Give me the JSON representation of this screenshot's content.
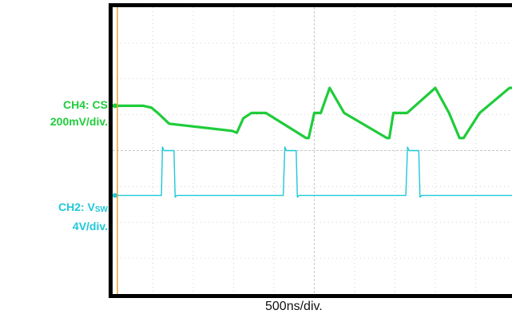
{
  "colors": {
    "ch4": "#1fcc3a",
    "ch2": "#1ec8d8",
    "frame": "#000000",
    "grid": "#c8c8c8",
    "marker": "#f0a030"
  },
  "labels": {
    "ch4_name": "CH4: CS",
    "ch4_scale": "200mV/div.",
    "ch2_prefix": "CH2: V",
    "ch2_sub": "SW",
    "ch2_scale": "4V/div."
  },
  "timebase": "500ns/div.",
  "chart_data": {
    "type": "line",
    "title": "",
    "xlabel": "500ns/div.",
    "ylabel": "",
    "x_unit": "ns",
    "grid": true,
    "xlim": [
      0,
      5000
    ],
    "ylim_div": [
      -4,
      4
    ],
    "series": [
      {
        "name": "CH4: CS",
        "scale": "200mV/div.",
        "unit": "div",
        "x": [
          0,
          380,
          480,
          560,
          700,
          1480,
          1540,
          1620,
          1720,
          1900,
          2400,
          2430,
          2500,
          2580,
          2690,
          2870,
          3400,
          3430,
          3480,
          3560,
          3600,
          3650,
          4000,
          4170,
          4300,
          4350,
          4550,
          4920,
          5000
        ],
        "y": [
          1.25,
          1.25,
          1.2,
          1.05,
          0.75,
          0.55,
          0.5,
          0.9,
          1.05,
          1.05,
          0.35,
          0.35,
          1.05,
          1.05,
          1.75,
          1.05,
          0.35,
          0.35,
          1.05,
          1.05,
          1.05,
          1.05,
          1.75,
          1.05,
          0.35,
          0.35,
          1.05,
          1.75,
          1.75
        ]
      },
      {
        "name": "CH2: VSW",
        "scale": "4V/div.",
        "unit": "div",
        "x": [
          0,
          605,
          618,
          638,
          760,
          775,
          795,
          2115,
          2135,
          2155,
          2275,
          2290,
          2310,
          3635,
          3655,
          3675,
          3795,
          3810,
          3830,
          5000
        ],
        "y": [
          -1.25,
          -1.25,
          0.1,
          0.0,
          0.0,
          -1.3,
          -1.25,
          -1.25,
          0.1,
          0.0,
          0.0,
          -1.3,
          -1.25,
          -1.25,
          0.1,
          0.0,
          0.0,
          -1.3,
          -1.25,
          -1.25
        ]
      }
    ]
  }
}
